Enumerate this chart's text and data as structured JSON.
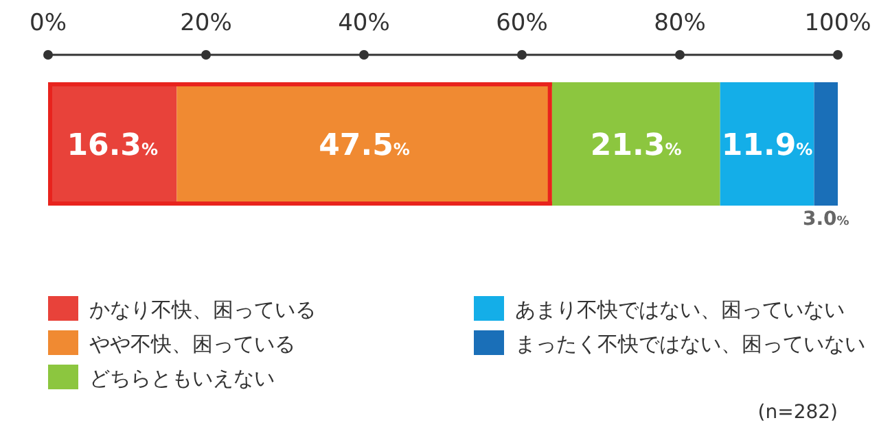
{
  "chart_data": {
    "type": "bar",
    "orientation": "horizontal",
    "stacked": true,
    "categories": [
      null
    ],
    "series": [
      {
        "name": "かなり不快、困っている",
        "color": "#e8423a",
        "values": [
          16.3
        ],
        "value_labels": [
          "16.3%"
        ]
      },
      {
        "name": "やや不快、困っている",
        "color": "#f08a32",
        "values": [
          47.5
        ],
        "value_labels": [
          "47.5%"
        ]
      },
      {
        "name": "どちらともいえない",
        "color": "#8cc63f",
        "values": [
          21.3
        ],
        "value_labels": [
          "21.3%"
        ]
      },
      {
        "name": "あまり不快ではない、困っていない",
        "color": "#14aee8",
        "values": [
          11.9
        ],
        "value_labels": [
          "11.9%"
        ]
      },
      {
        "name": "まったく不快ではない、困っていない",
        "color": "#1a6fb8",
        "values": [
          3.0
        ],
        "value_labels": [
          "3.0%"
        ]
      }
    ],
    "xlim": [
      0,
      100
    ],
    "xticks": [
      {
        "value": 0,
        "label": "0%"
      },
      {
        "value": 20,
        "label": "20%"
      },
      {
        "value": 40,
        "label": "40%"
      },
      {
        "value": 60,
        "label": "60%"
      },
      {
        "value": 80,
        "label": "80%"
      },
      {
        "value": 100,
        "label": "100%"
      }
    ],
    "legend": "bottom",
    "grid": false,
    "annotations": [
      "(n=282)"
    ]
  }
}
